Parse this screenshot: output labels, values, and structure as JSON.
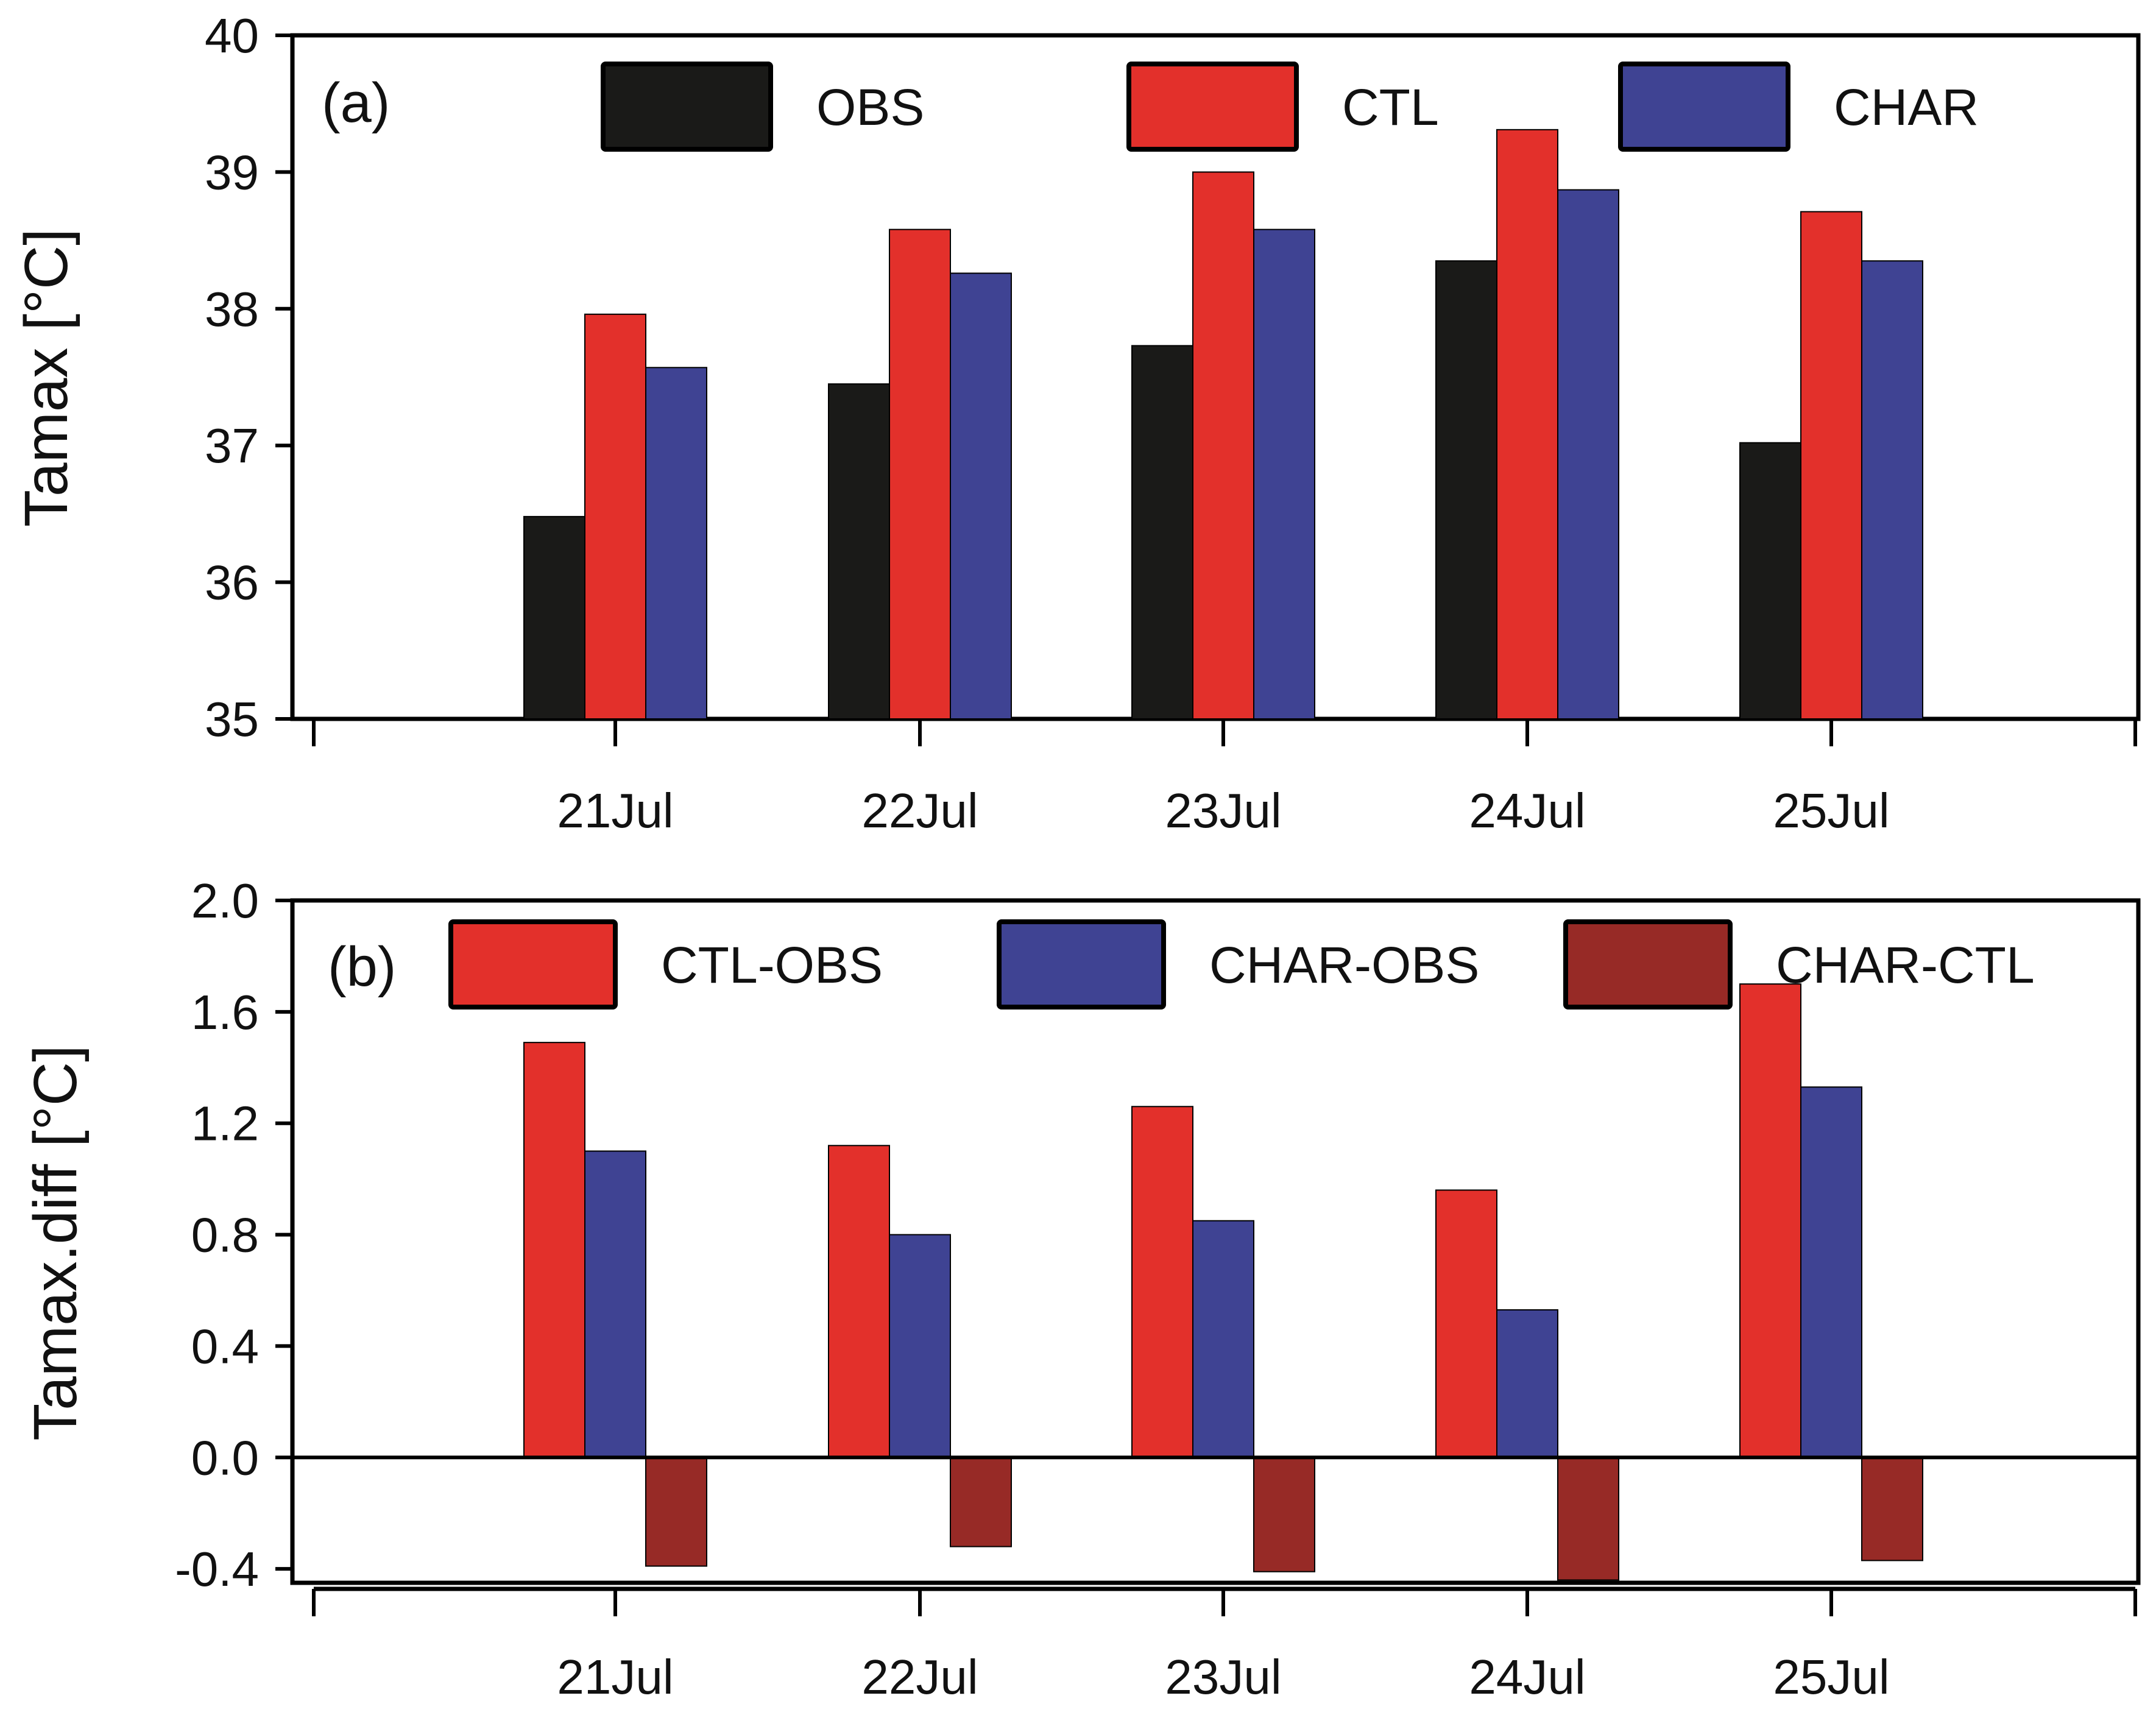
{
  "chart_data": [
    {
      "type": "bar",
      "panel_label": "(a)",
      "ylabel": "Tamax [°C]",
      "xlabel": "",
      "ylim": [
        35,
        40
      ],
      "yticks": [
        "35",
        "36",
        "37",
        "38",
        "39",
        "40"
      ],
      "categories": [
        "21Jul",
        "22Jul",
        "23Jul",
        "24Jul",
        "25Jul"
      ],
      "series": [
        {
          "name": "OBS",
          "color": "#1a1a18",
          "values": [
            36.48,
            37.45,
            37.73,
            38.35,
            37.02
          ]
        },
        {
          "name": "CTL",
          "color": "#e3302b",
          "values": [
            37.96,
            38.58,
            39.0,
            39.31,
            38.71
          ]
        },
        {
          "name": "CHAR",
          "color": "#3f4393",
          "values": [
            37.57,
            38.26,
            38.58,
            38.87,
            38.35
          ]
        }
      ],
      "legend": "top-center"
    },
    {
      "type": "bar",
      "panel_label": "(b)",
      "ylabel": "Tamax.diff [°C]",
      "xlabel": "",
      "ylim": [
        -0.45,
        2.0
      ],
      "yticks": [
        "-0.4",
        "0.0",
        "0.4",
        "0.8",
        "1.2",
        "1.6",
        "2.0"
      ],
      "categories": [
        "21Jul",
        "22Jul",
        "23Jul",
        "24Jul",
        "25Jul"
      ],
      "series": [
        {
          "name": "CTL-OBS",
          "color": "#e3302b",
          "values": [
            1.49,
            1.12,
            1.26,
            0.96,
            1.7
          ]
        },
        {
          "name": "CHAR-OBS",
          "color": "#3f4393",
          "values": [
            1.1,
            0.8,
            0.85,
            0.53,
            1.33
          ]
        },
        {
          "name": "CHAR-CTL",
          "color": "#972a26",
          "values": [
            -0.39,
            -0.32,
            -0.41,
            -0.44,
            -0.37
          ]
        }
      ],
      "legend": "top-center"
    }
  ]
}
